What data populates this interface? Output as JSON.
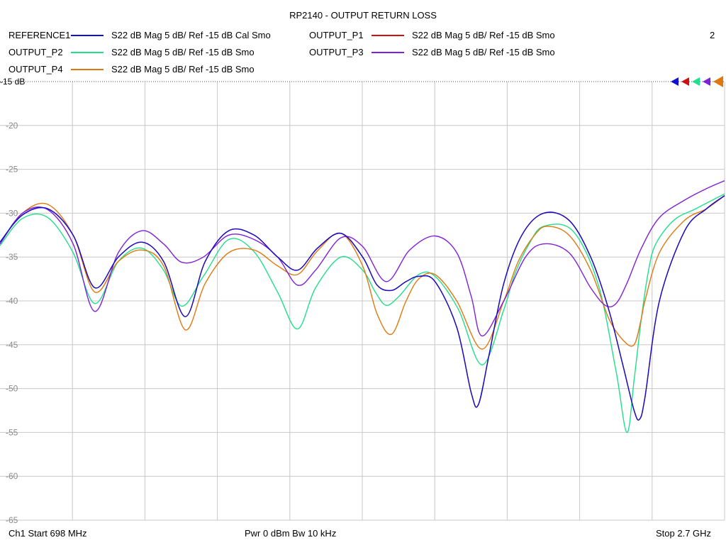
{
  "header": {
    "title": "RP2140 - OUTPUT RETURN LOSS",
    "window_index": "2"
  },
  "legend": [
    {
      "name": "REFERENCE1",
      "desc": "S22  dB Mag  5 dB/ Ref -15 dB  Cal Smo",
      "color": "#1010d0"
    },
    {
      "name": "OUTPUT_P1",
      "desc": "S22  dB Mag  5 dB/ Ref -15 dB  Smo",
      "color": "#d01010"
    },
    {
      "name": "OUTPUT_P2",
      "desc": "S22  dB Mag  5 dB/ Ref -15 dB  Smo",
      "color": "#1fe08a"
    },
    {
      "name": "OUTPUT_P3",
      "desc": "S22  dB Mag  5 dB/ Ref -15 dB  Smo",
      "color": "#8020d8"
    },
    {
      "name": "OUTPUT_P4",
      "desc": "S22  dB Mag  5 dB/ Ref -15 dB  Smo",
      "color": "#e07810"
    }
  ],
  "footer": {
    "start": "Ch1  Start  698 MHz",
    "power": "Pwr  0 dBm  Bw  10 kHz",
    "stop": "Stop  2.7 GHz"
  },
  "chart_data": {
    "type": "line",
    "title": "RP2140 - OUTPUT RETURN LOSS",
    "xlim": [
      698,
      2700
    ],
    "x_unit": "MHz",
    "ylim": [
      -65,
      -15
    ],
    "y_unit": "dB",
    "ref_label": "-15 dB",
    "yticks": [
      -20,
      -25,
      -30,
      -35,
      -40,
      -45,
      -50,
      -55,
      -60,
      -65
    ],
    "ytick_labels": [
      "-20",
      "-25",
      "-30",
      "-35",
      "-40",
      "-45",
      "-50",
      "-55",
      "-60",
      "-65"
    ],
    "x_divisions": 10,
    "grid": true,
    "series": [
      {
        "name": "OUTPUT_P2",
        "color": "#1fe08a",
        "x": [
          698,
          760,
          830,
          900,
          960,
          1025,
          1090,
          1150,
          1200,
          1260,
          1330,
          1400,
          1465,
          1520,
          1570,
          1640,
          1700,
          1735,
          1765,
          1800,
          1855,
          1900,
          1965,
          2030,
          2090,
          2120,
          2160,
          2200,
          2280,
          2350,
          2400,
          2430,
          2450,
          2470,
          2490,
          2510,
          2560,
          2620,
          2700
        ],
        "y": [
          -33.7,
          -30.6,
          -30.5,
          -34.5,
          -40.3,
          -35.5,
          -34.0,
          -36.5,
          -40.6,
          -37.2,
          -33.0,
          -34.4,
          -39.0,
          -43.2,
          -38.5,
          -35.0,
          -36.5,
          -39.0,
          -40.5,
          -39.5,
          -37.0,
          -37.2,
          -41.0,
          -47.3,
          -41.0,
          -37.0,
          -33.5,
          -31.5,
          -32.0,
          -38.0,
          -48.0,
          -55.0,
          -49.0,
          -42.0,
          -36.5,
          -33.5,
          -30.8,
          -29.5,
          -27.8
        ]
      },
      {
        "name": "OUTPUT_P4",
        "color": "#e07810",
        "x": [
          698,
          760,
          830,
          900,
          960,
          1025,
          1090,
          1150,
          1210,
          1265,
          1330,
          1400,
          1465,
          1520,
          1575,
          1640,
          1700,
          1740,
          1780,
          1820,
          1855,
          1900,
          1960,
          2030,
          2090,
          2130,
          2175,
          2210,
          2270,
          2330,
          2380,
          2420,
          2450,
          2470,
          2480,
          2520,
          2590,
          2650,
          2700
        ],
        "y": [
          -33.5,
          -30.0,
          -29.0,
          -32.5,
          -39.0,
          -35.5,
          -34.2,
          -36.0,
          -43.3,
          -38.0,
          -34.5,
          -34.2,
          -36.0,
          -37.0,
          -34.3,
          -32.3,
          -36.0,
          -41.5,
          -43.8,
          -40.0,
          -37.5,
          -37.0,
          -40.0,
          -45.5,
          -40.0,
          -35.5,
          -32.5,
          -31.5,
          -32.5,
          -36.5,
          -42.0,
          -44.5,
          -45.0,
          -42.0,
          -40.0,
          -34.5,
          -30.8,
          -29.5,
          -28.0
        ]
      },
      {
        "name": "OUTPUT_P1",
        "color": "#d01010",
        "x": [
          698,
          760,
          830,
          900,
          960,
          1025,
          1090,
          1150,
          1210,
          1265,
          1330,
          1400,
          1465,
          1520,
          1575,
          1640,
          1700,
          1740,
          1780,
          1820,
          1855,
          1900,
          1960,
          2000,
          2020,
          2050,
          2090,
          2140,
          2200,
          2270,
          2330,
          2380,
          2420,
          2450,
          2465,
          2480,
          2520,
          2590,
          2650,
          2700
        ],
        "y": [
          -33.3,
          -30.2,
          -29.5,
          -32.5,
          -38.5,
          -35.0,
          -33.3,
          -35.5,
          -41.8,
          -35.5,
          -32.0,
          -32.5,
          -35.0,
          -36.5,
          -34.0,
          -32.3,
          -35.0,
          -38.2,
          -38.8,
          -37.8,
          -37.2,
          -37.8,
          -43.0,
          -50.5,
          -51.8,
          -46.0,
          -38.0,
          -32.5,
          -30.0,
          -30.8,
          -35.0,
          -41.0,
          -47.5,
          -52.5,
          -53.5,
          -51.0,
          -40.0,
          -32.0,
          -29.5,
          -28.0
        ]
      },
      {
        "name": "OUTPUT_P3",
        "color": "#8020d8",
        "x": [
          698,
          760,
          830,
          900,
          960,
          1025,
          1090,
          1150,
          1200,
          1260,
          1330,
          1400,
          1465,
          1520,
          1570,
          1640,
          1700,
          1765,
          1830,
          1900,
          1960,
          2000,
          2030,
          2090,
          2150,
          2200,
          2270,
          2330,
          2370,
          2400,
          2430,
          2470,
          2520,
          2590,
          2650,
          2700
        ],
        "y": [
          -33.5,
          -30.0,
          -29.6,
          -33.5,
          -41.2,
          -34.5,
          -32.0,
          -33.5,
          -35.6,
          -35.0,
          -32.5,
          -33.0,
          -35.0,
          -38.2,
          -36.5,
          -32.8,
          -33.8,
          -37.8,
          -34.2,
          -32.6,
          -34.5,
          -39.5,
          -44.0,
          -40.0,
          -35.0,
          -33.5,
          -34.5,
          -38.5,
          -40.5,
          -40.3,
          -38.0,
          -34.0,
          -30.5,
          -28.5,
          -27.2,
          -26.3
        ]
      },
      {
        "name": "REFERENCE1",
        "color": "#1010d0",
        "x": [
          698,
          760,
          830,
          900,
          960,
          1025,
          1090,
          1150,
          1210,
          1265,
          1330,
          1400,
          1465,
          1520,
          1575,
          1640,
          1700,
          1740,
          1780,
          1820,
          1855,
          1900,
          1960,
          2000,
          2020,
          2050,
          2090,
          2140,
          2200,
          2270,
          2330,
          2380,
          2420,
          2450,
          2465,
          2480,
          2520,
          2590,
          2650,
          2700
        ],
        "y": [
          -33.3,
          -30.2,
          -29.5,
          -32.5,
          -38.5,
          -35.0,
          -33.3,
          -35.5,
          -41.8,
          -35.5,
          -32.0,
          -32.5,
          -35.0,
          -36.5,
          -34.0,
          -32.3,
          -35.0,
          -38.2,
          -38.8,
          -37.8,
          -37.2,
          -37.8,
          -43.0,
          -50.5,
          -51.8,
          -46.0,
          -38.0,
          -32.5,
          -30.0,
          -30.8,
          -35.0,
          -41.0,
          -47.5,
          -52.5,
          -53.5,
          -51.0,
          -40.0,
          -32.0,
          -29.5,
          -28.0
        ],
        "hidden_under": "OUTPUT_P1"
      }
    ]
  }
}
